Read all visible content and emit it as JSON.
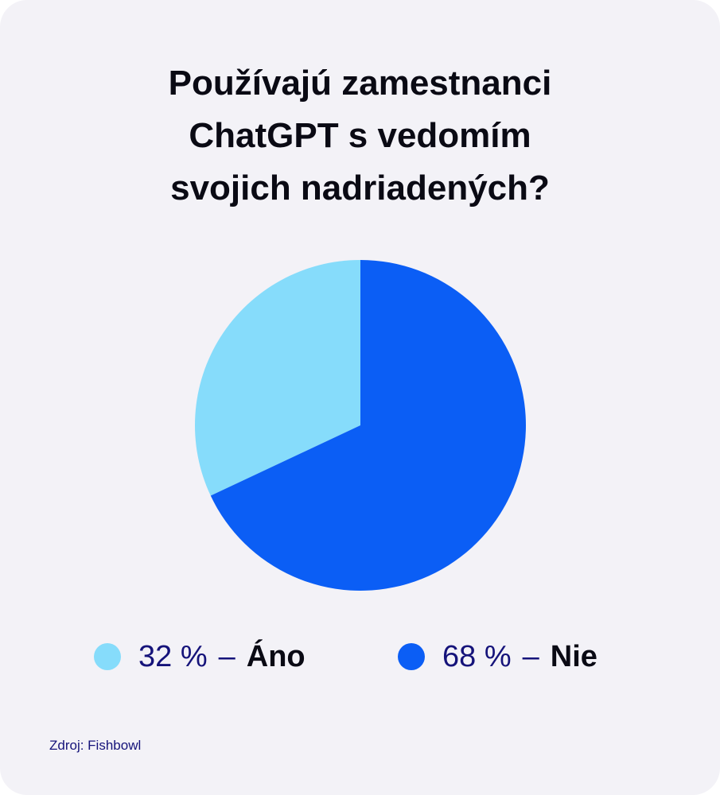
{
  "chart_data": {
    "type": "pie",
    "title_lines": [
      "Používajú zamestnanci",
      "ChatGPT s vedomím",
      "svojich nadriadených?"
    ],
    "slices": [
      {
        "label": "Áno",
        "value": 32,
        "display": "32 %",
        "color": "#86dcfb"
      },
      {
        "label": "Nie",
        "value": 68,
        "display": "68 %",
        "color": "#0b5ef5"
      }
    ],
    "legend_position": "bottom",
    "separator": "–"
  },
  "source": "Zdroj: Fishbowl"
}
